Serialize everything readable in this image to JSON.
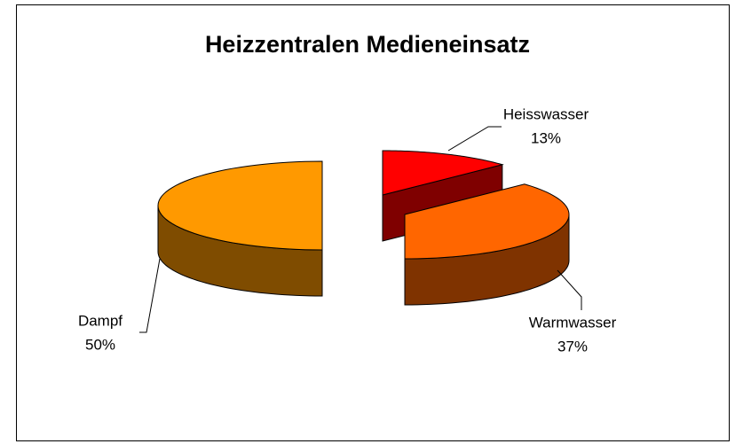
{
  "chart_data": {
    "type": "pie",
    "title": "Heizzentralen Medieneinsatz",
    "categories": [
      "Heisswasser",
      "Warmwasser",
      "Dampf"
    ],
    "values": [
      13,
      37,
      50
    ],
    "value_labels": [
      "13%",
      "37%",
      "50%"
    ],
    "colors": [
      "#ff0000",
      "#ff6600",
      "#ff9900"
    ]
  }
}
